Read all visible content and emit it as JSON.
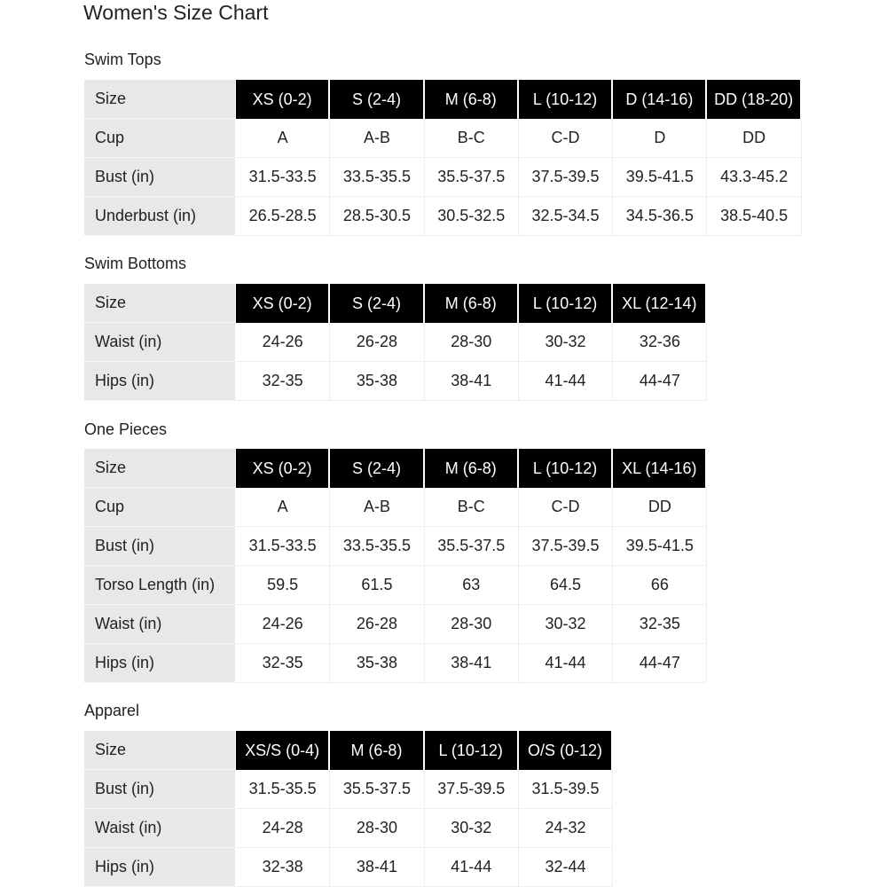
{
  "title": "Women's Size Chart",
  "sections": [
    {
      "label": "Swim Tops",
      "rows": [
        [
          "Size",
          "XS (0-2)",
          "S (2-4)",
          "M (6-8)",
          "L (10-12)",
          "D (14-16)",
          "DD (18-20)"
        ],
        [
          "Cup",
          "A",
          "A-B",
          "B-C",
          "C-D",
          "D",
          "DD"
        ],
        [
          "Bust (in)",
          "31.5-33.5",
          "33.5-35.5",
          "35.5-37.5",
          "37.5-39.5",
          "39.5-41.5",
          "43.3-45.2"
        ],
        [
          "Underbust (in)",
          "26.5-28.5",
          "28.5-30.5",
          "30.5-32.5",
          "32.5-34.5",
          "34.5-36.5",
          "38.5-40.5"
        ]
      ]
    },
    {
      "label": "Swim Bottoms",
      "rows": [
        [
          "Size",
          "XS (0-2)",
          "S (2-4)",
          "M (6-8)",
          "L (10-12)",
          "XL (12-14)"
        ],
        [
          "Waist (in)",
          "24-26",
          "26-28",
          "28-30",
          "30-32",
          "32-36"
        ],
        [
          "Hips (in)",
          "32-35",
          "35-38",
          "38-41",
          "41-44",
          "44-47"
        ]
      ]
    },
    {
      "label": "One Pieces",
      "rows": [
        [
          "Size",
          "XS (0-2)",
          "S (2-4)",
          "M (6-8)",
          "L (10-12)",
          "XL (14-16)"
        ],
        [
          "Cup",
          "A",
          "A-B",
          "B-C",
          "C-D",
          "DD"
        ],
        [
          "Bust (in)",
          "31.5-33.5",
          "33.5-35.5",
          "35.5-37.5",
          "37.5-39.5",
          "39.5-41.5"
        ],
        [
          "Torso Length (in)",
          "59.5",
          "61.5",
          "63",
          "64.5",
          "66"
        ],
        [
          "Waist (in)",
          "24-26",
          "26-28",
          "28-30",
          "30-32",
          "32-35"
        ],
        [
          "Hips (in)",
          "32-35",
          "35-38",
          "38-41",
          "41-44",
          "44-47"
        ]
      ]
    },
    {
      "label": "Apparel",
      "rows": [
        [
          "Size",
          "XS/S (0-4)",
          "M (6-8)",
          "L (10-12)",
          "O/S (0-12)"
        ],
        [
          "Bust (in)",
          "31.5-35.5",
          "35.5-37.5",
          "37.5-39.5",
          "31.5-39.5"
        ],
        [
          "Waist (in)",
          "24-28",
          "28-30",
          "30-32",
          "24-32"
        ],
        [
          "Hips (in)",
          "32-38",
          "38-41",
          "41-44",
          "32-44"
        ]
      ]
    }
  ]
}
